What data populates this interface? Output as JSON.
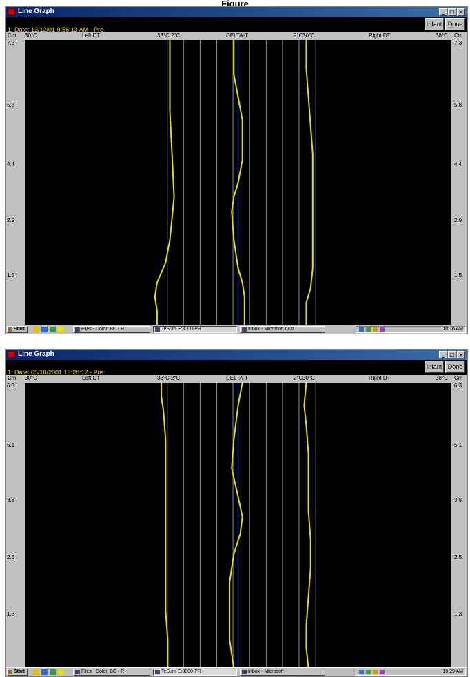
{
  "page_title": "Figure",
  "windows": [
    {
      "title": "Line Graph",
      "date": "1: Date: 13/12/01 9:56:13 AM - Pre",
      "buttons": {
        "infant": "Infant",
        "done": "Done"
      },
      "headers": {
        "cm": "Cm",
        "left_min": "30°C",
        "left_label": "Left DT",
        "left_max": "38°C",
        "delta_min": "2°C",
        "delta_label": "DELTA-T",
        "delta_max": "2°C",
        "right_min": "30°C",
        "right_label": "Right DT",
        "right_max": "38°C"
      },
      "depth_labels": [
        "7.3",
        "5.8",
        "4.4",
        "2.9",
        "1.5"
      ],
      "taskbar": {
        "start": "Start",
        "tasks": [
          "Files - Dolor, BC - R",
          "TeSum E:3000-PR",
          "Inbox - Microsoft Outl"
        ],
        "clock": "10:16 AM"
      }
    },
    {
      "title": "Line Graph",
      "date": "1: Date: 05/10/2001 10:28:17 - Pre",
      "buttons": {
        "infant": "Infant",
        "done": "Done"
      },
      "headers": {
        "cm": "Cm",
        "left_min": "30°C",
        "left_label": "Left DT",
        "left_max": "38°C",
        "delta_min": "2°C",
        "delta_label": "DELTA-T",
        "delta_max": "2°C",
        "right_min": "30°C",
        "right_label": "Right DT",
        "right_max": "38°C"
      },
      "depth_labels": [
        "6.3",
        "5.1",
        "3.8",
        "2.5",
        "1.3"
      ],
      "taskbar": {
        "start": "Start",
        "tasks": [
          "Files - Dolor, BC - R",
          "TeSum E:3000-PR",
          "Inbox - Microsoft"
        ],
        "clock": "10:29 AM"
      }
    }
  ],
  "chart_data": [
    {
      "type": "line",
      "panel": "top",
      "ylabel": "Cm",
      "yticks": [
        7.3,
        5.8,
        4.4,
        2.9,
        1.5
      ],
      "colors": {
        "trace": "#e8e000",
        "grid": "#8c8c8c",
        "background": "#000000"
      },
      "traces": {
        "left": [
          [
            0,
            0.34
          ],
          [
            0.1,
            0.34
          ],
          [
            0.25,
            0.34
          ],
          [
            0.4,
            0.345
          ],
          [
            0.55,
            0.35
          ],
          [
            0.7,
            0.34
          ],
          [
            0.78,
            0.33
          ],
          [
            0.85,
            0.31
          ],
          [
            0.9,
            0.305
          ],
          [
            0.95,
            0.31
          ],
          [
            1,
            0.31
          ]
        ],
        "delta": [
          [
            0,
            0.49
          ],
          [
            0.06,
            0.49
          ],
          [
            0.12,
            0.49
          ],
          [
            0.2,
            0.5
          ],
          [
            0.28,
            0.51
          ],
          [
            0.35,
            0.51
          ],
          [
            0.42,
            0.51
          ],
          [
            0.5,
            0.5
          ],
          [
            0.55,
            0.49
          ],
          [
            0.6,
            0.485
          ],
          [
            0.7,
            0.49
          ],
          [
            0.8,
            0.5
          ],
          [
            0.85,
            0.51
          ],
          [
            0.9,
            0.515
          ],
          [
            0.95,
            0.515
          ],
          [
            1,
            0.515
          ]
        ],
        "right": [
          [
            0,
            0.66
          ],
          [
            0.1,
            0.66
          ],
          [
            0.2,
            0.665
          ],
          [
            0.3,
            0.67
          ],
          [
            0.4,
            0.675
          ],
          [
            0.5,
            0.675
          ],
          [
            0.6,
            0.675
          ],
          [
            0.7,
            0.675
          ],
          [
            0.8,
            0.675
          ],
          [
            0.87,
            0.67
          ],
          [
            0.92,
            0.66
          ],
          [
            1,
            0.66
          ]
        ]
      }
    },
    {
      "type": "line",
      "panel": "bottom",
      "ylabel": "Cm",
      "yticks": [
        6.3,
        5.1,
        3.8,
        2.5,
        1.3
      ],
      "colors": {
        "trace": "#e8e000",
        "grid": "#8c8c8c",
        "background": "#000000"
      },
      "traces": {
        "left": [
          [
            0,
            0.32
          ],
          [
            0.05,
            0.32
          ],
          [
            0.1,
            0.325
          ],
          [
            0.2,
            0.33
          ],
          [
            0.35,
            0.33
          ],
          [
            0.5,
            0.33
          ],
          [
            0.65,
            0.33
          ],
          [
            0.8,
            0.33
          ],
          [
            0.9,
            0.335
          ],
          [
            1,
            0.335
          ]
        ],
        "delta": [
          [
            0,
            0.51
          ],
          [
            0.04,
            0.505
          ],
          [
            0.08,
            0.5
          ],
          [
            0.14,
            0.495
          ],
          [
            0.2,
            0.49
          ],
          [
            0.3,
            0.485
          ],
          [
            0.4,
            0.5
          ],
          [
            0.47,
            0.51
          ],
          [
            0.53,
            0.505
          ],
          [
            0.6,
            0.49
          ],
          [
            0.7,
            0.48
          ],
          [
            0.8,
            0.48
          ],
          [
            0.9,
            0.48
          ],
          [
            1,
            0.49
          ]
        ],
        "right": [
          [
            0,
            0.66
          ],
          [
            0.08,
            0.655
          ],
          [
            0.15,
            0.66
          ],
          [
            0.25,
            0.665
          ],
          [
            0.35,
            0.665
          ],
          [
            0.45,
            0.665
          ],
          [
            0.55,
            0.67
          ],
          [
            0.65,
            0.67
          ],
          [
            0.75,
            0.665
          ],
          [
            0.85,
            0.66
          ],
          [
            0.93,
            0.66
          ],
          [
            1,
            0.665
          ]
        ]
      }
    }
  ]
}
